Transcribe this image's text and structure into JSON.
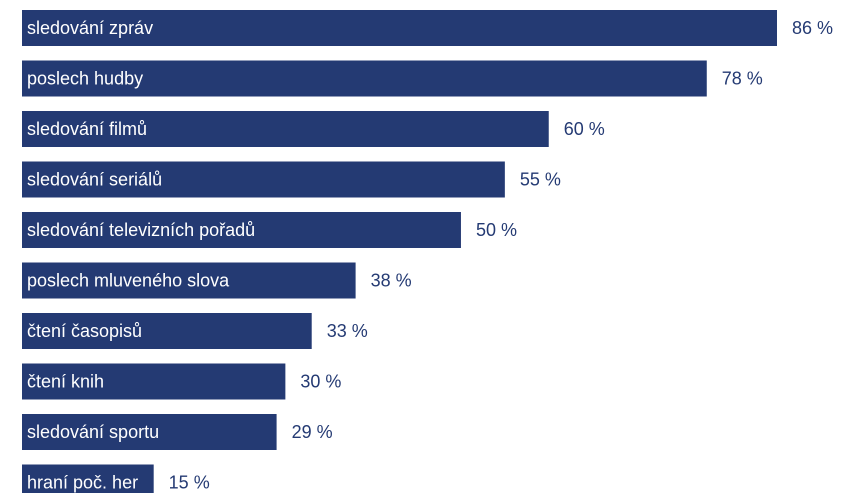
{
  "chart_data": {
    "type": "bar",
    "orientation": "horizontal",
    "categories": [
      "sledování zpráv",
      "poslech hudby",
      "sledování filmů",
      "sledování seriálů",
      "sledování televizních pořadů",
      "poslech mluveného slova",
      "čtení časopisů",
      "čtení knih",
      "sledování sportu",
      "hraní poč. her"
    ],
    "values": [
      86,
      78,
      60,
      55,
      50,
      38,
      33,
      30,
      29,
      15
    ],
    "value_labels": [
      "86 %",
      "78 %",
      "60 %",
      "55 %",
      "50 %",
      "38 %",
      "33 %",
      "30 %",
      "29 %",
      "15 %"
    ],
    "unit": "%",
    "title": "",
    "xlabel": "",
    "ylabel": "",
    "xlim": [
      0,
      86
    ],
    "grid": false,
    "legend": "none",
    "bar_color": "#243a73",
    "label_color": "#ffffff",
    "value_color": "#243a73"
  }
}
